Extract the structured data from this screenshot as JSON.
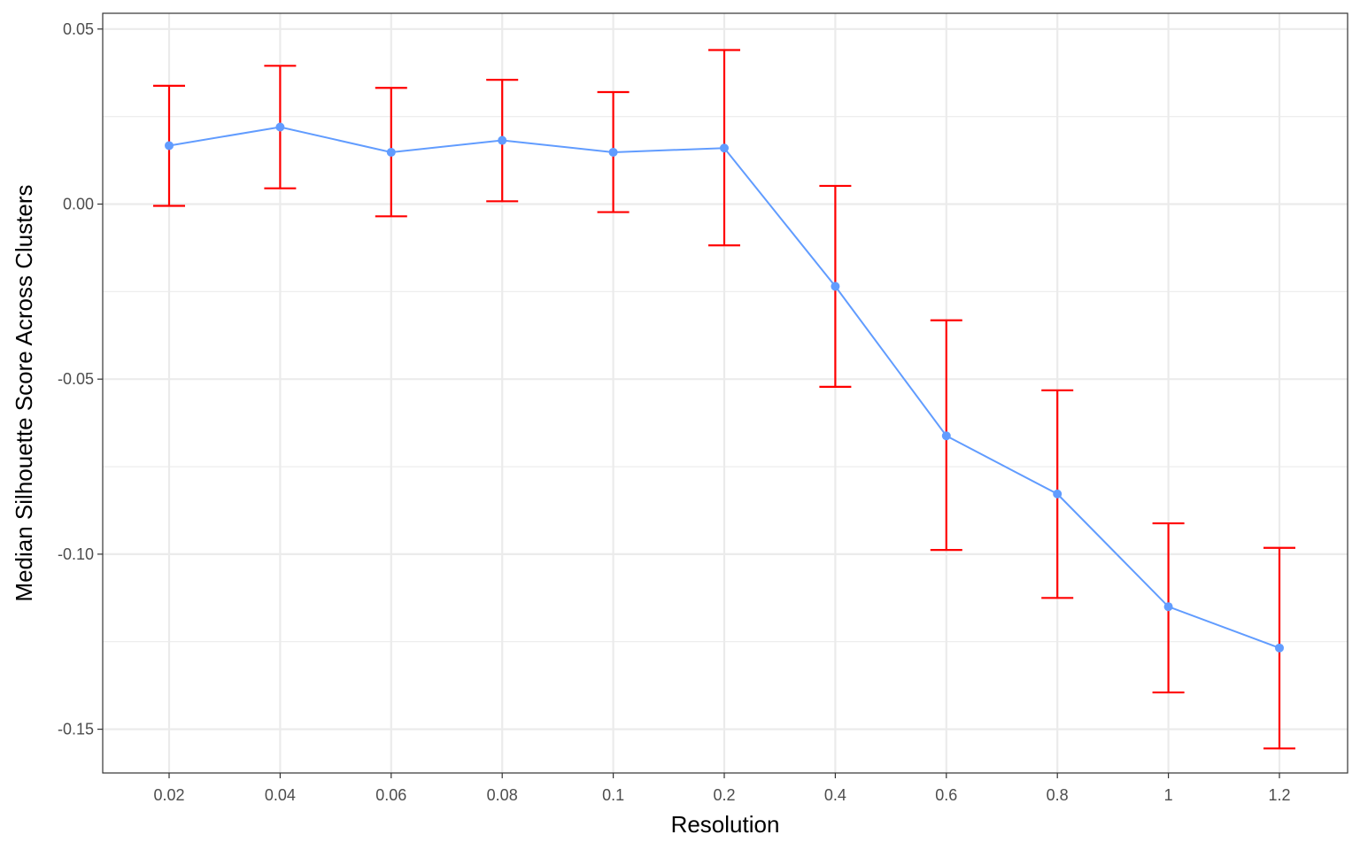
{
  "chart_data": {
    "type": "line",
    "title": "",
    "xlabel": "Resolution",
    "ylabel": "Median Silhouette Score Across Clusters",
    "categories": [
      "0.02",
      "0.04",
      "0.06",
      "0.08",
      "0.1",
      "0.2",
      "0.4",
      "0.6",
      "0.8",
      "1",
      "1.2"
    ],
    "series": [
      {
        "values": [
          0.0167,
          0.022,
          0.0148,
          0.0182,
          0.0148,
          0.016,
          -0.0235,
          -0.0662,
          -0.0828,
          -0.115,
          -0.1268
        ],
        "error_low": [
          -0.0005,
          0.0045,
          -0.0035,
          0.0008,
          -0.0023,
          -0.0118,
          -0.0522,
          -0.0988,
          -0.1125,
          -0.1395,
          -0.1555
        ],
        "error_high": [
          0.0338,
          0.0395,
          0.0332,
          0.0355,
          0.032,
          0.044,
          0.0052,
          -0.0332,
          -0.0532,
          -0.0912,
          -0.0982
        ]
      }
    ],
    "ylim": [
      -0.1625,
      0.0545
    ],
    "yticks": [
      0.05,
      0.0,
      -0.05,
      -0.1,
      -0.15
    ],
    "ytick_labels": [
      "0.05",
      "0.00",
      "-0.05",
      "-0.10",
      "-0.15"
    ],
    "grid": true,
    "legend": "none",
    "colors": {
      "line": "#619CFF",
      "point": "#619CFF",
      "errorbar": "#FF0000",
      "grid": "#EBEBEB",
      "border": "#333333"
    }
  }
}
